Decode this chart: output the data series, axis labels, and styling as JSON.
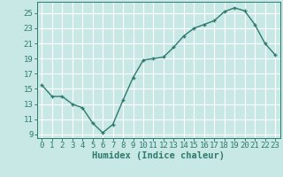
{
  "x": [
    0,
    1,
    2,
    3,
    4,
    5,
    6,
    7,
    8,
    9,
    10,
    11,
    12,
    13,
    14,
    15,
    16,
    17,
    18,
    19,
    20,
    21,
    22,
    23
  ],
  "y": [
    15.5,
    14.0,
    14.0,
    13.0,
    12.5,
    10.5,
    9.2,
    10.3,
    13.5,
    16.5,
    18.8,
    19.0,
    19.2,
    20.5,
    22.0,
    23.0,
    23.5,
    24.0,
    25.2,
    25.7,
    25.3,
    23.5,
    21.0,
    19.5
  ],
  "line_color": "#2d7a6e",
  "marker": "+",
  "bg_color": "#c8e8e5",
  "grid_color": "#ffffff",
  "xlabel": "Humidex (Indice chaleur)",
  "ylim": [
    8.5,
    26.5
  ],
  "xlim": [
    -0.5,
    23.5
  ],
  "yticks": [
    9,
    11,
    13,
    15,
    17,
    19,
    21,
    23,
    25
  ],
  "xticks": [
    0,
    1,
    2,
    3,
    4,
    5,
    6,
    7,
    8,
    9,
    10,
    11,
    12,
    13,
    14,
    15,
    16,
    17,
    18,
    19,
    20,
    21,
    22,
    23
  ],
  "xlabel_fontsize": 7.5,
  "tick_fontsize": 6.5,
  "line_width": 1.0,
  "marker_size": 3.5
}
